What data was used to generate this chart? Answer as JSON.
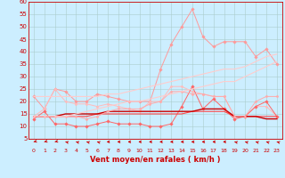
{
  "xlabel": "Vent moyen/en rafales ( km/h )",
  "bg_color": "#cceeff",
  "grid_color": "#aacccc",
  "xlim": [
    -0.5,
    23.5
  ],
  "ylim": [
    5,
    60
  ],
  "yticks": [
    5,
    10,
    15,
    20,
    25,
    30,
    35,
    40,
    45,
    50,
    55,
    60
  ],
  "xticks": [
    0,
    1,
    2,
    3,
    4,
    5,
    6,
    7,
    8,
    9,
    10,
    11,
    12,
    13,
    14,
    15,
    16,
    17,
    18,
    19,
    20,
    21,
    22,
    23
  ],
  "series": [
    {
      "color": "#ff9999",
      "alpha": 1.0,
      "linewidth": 0.7,
      "marker": "D",
      "markersize": 1.8,
      "data_x": [
        0,
        1,
        2,
        3,
        4,
        5,
        6,
        7,
        8,
        9,
        10,
        11,
        12,
        13,
        14,
        15,
        16,
        17,
        18,
        19,
        20,
        21,
        22,
        23
      ],
      "data_y": [
        22,
        17,
        25,
        24,
        20,
        20,
        23,
        22,
        21,
        20,
        20,
        20,
        33,
        43,
        50,
        57,
        46,
        42,
        44,
        44,
        44,
        38,
        41,
        35
      ]
    },
    {
      "color": "#ffbbbb",
      "alpha": 1.0,
      "linewidth": 0.7,
      "marker": "D",
      "markersize": 1.5,
      "data_x": [
        0,
        1,
        2,
        3,
        4,
        5,
        6,
        7,
        8,
        9,
        10,
        11,
        12,
        13,
        14,
        15,
        16,
        17,
        18,
        19,
        20,
        21,
        22,
        23
      ],
      "data_y": [
        14,
        17,
        25,
        20,
        19,
        19,
        18,
        19,
        18,
        17,
        16,
        20,
        20,
        26,
        26,
        24,
        23,
        22,
        22,
        14,
        14,
        18,
        18,
        14
      ]
    },
    {
      "color": "#ff6666",
      "alpha": 1.0,
      "linewidth": 0.7,
      "marker": "D",
      "markersize": 1.8,
      "data_x": [
        0,
        1,
        2,
        3,
        4,
        5,
        6,
        7,
        8,
        9,
        10,
        11,
        12,
        13,
        14,
        15,
        16,
        17,
        18,
        19,
        20,
        21,
        22,
        23
      ],
      "data_y": [
        13,
        16,
        11,
        11,
        10,
        10,
        11,
        12,
        11,
        11,
        11,
        10,
        10,
        11,
        18,
        26,
        17,
        21,
        17,
        13,
        14,
        18,
        20,
        14
      ]
    },
    {
      "color": "#ff4444",
      "alpha": 1.0,
      "linewidth": 0.8,
      "marker": null,
      "markersize": 0,
      "data_x": [
        0,
        1,
        2,
        3,
        4,
        5,
        6,
        7,
        8,
        9,
        10,
        11,
        12,
        13,
        14,
        15,
        16,
        17,
        18,
        19,
        20,
        21,
        22,
        23
      ],
      "data_y": [
        14,
        14,
        14,
        14,
        14,
        14,
        15,
        15,
        15,
        15,
        15,
        15,
        15,
        15,
        15,
        16,
        16,
        16,
        16,
        14,
        14,
        14,
        14,
        14
      ]
    },
    {
      "color": "#cc0000",
      "alpha": 1.0,
      "linewidth": 1.0,
      "marker": null,
      "markersize": 0,
      "data_x": [
        0,
        1,
        2,
        3,
        4,
        5,
        6,
        7,
        8,
        9,
        10,
        11,
        12,
        13,
        14,
        15,
        16,
        17,
        18,
        19,
        20,
        21,
        22,
        23
      ],
      "data_y": [
        14,
        14,
        14,
        15,
        15,
        15,
        15,
        16,
        16,
        16,
        16,
        16,
        16,
        16,
        16,
        16,
        17,
        17,
        17,
        14,
        14,
        14,
        13,
        13
      ]
    },
    {
      "color": "#ffaaaa",
      "alpha": 1.0,
      "linewidth": 0.7,
      "marker": "D",
      "markersize": 1.5,
      "data_x": [
        0,
        1,
        2,
        3,
        4,
        5,
        6,
        7,
        8,
        9,
        10,
        11,
        12,
        13,
        14,
        15,
        16,
        17,
        18,
        19,
        20,
        21,
        22,
        23
      ],
      "data_y": [
        14,
        14,
        14,
        14,
        14,
        13,
        14,
        16,
        17,
        17,
        17,
        19,
        20,
        24,
        24,
        23,
        23,
        22,
        22,
        14,
        14,
        20,
        22,
        22
      ]
    },
    {
      "color": "#ffcccc",
      "alpha": 1.0,
      "linewidth": 0.8,
      "marker": null,
      "markersize": 0,
      "data_x": [
        0,
        1,
        2,
        3,
        4,
        5,
        6,
        7,
        8,
        9,
        10,
        11,
        12,
        13,
        14,
        15,
        16,
        17,
        18,
        19,
        20,
        21,
        22,
        23
      ],
      "data_y": [
        14,
        14,
        14,
        14,
        15,
        16,
        17,
        18,
        19,
        20,
        20,
        21,
        22,
        23,
        24,
        25,
        26,
        27,
        28,
        28,
        30,
        32,
        34,
        36
      ]
    },
    {
      "color": "#ffcccc",
      "alpha": 1.0,
      "linewidth": 0.8,
      "marker": null,
      "markersize": 0,
      "data_x": [
        0,
        1,
        2,
        3,
        4,
        5,
        6,
        7,
        8,
        9,
        10,
        11,
        12,
        13,
        14,
        15,
        16,
        17,
        18,
        19,
        20,
        21,
        22,
        23
      ],
      "data_y": [
        22,
        22,
        22,
        22,
        22,
        22,
        22,
        23,
        23,
        24,
        25,
        26,
        27,
        28,
        29,
        30,
        31,
        32,
        33,
        33,
        34,
        36,
        38,
        39
      ]
    }
  ],
  "arrow_color": "#cc0000",
  "axis_label_color": "#cc0000",
  "tick_color": "#cc0000",
  "arrow_angles_deg": [
    225,
    225,
    225,
    315,
    315,
    315,
    315,
    270,
    270,
    270,
    270,
    270,
    270,
    270,
    270,
    270,
    270,
    270,
    270,
    315,
    315,
    315,
    315,
    315
  ]
}
